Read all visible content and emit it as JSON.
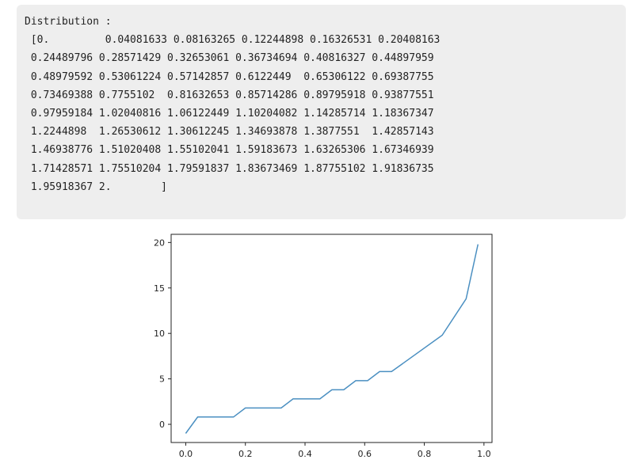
{
  "output": {
    "lines": [
      "Distribution :",
      " [0.         0.04081633 0.08163265 0.12244898 0.16326531 0.20408163",
      " 0.24489796 0.28571429 0.32653061 0.36734694 0.40816327 0.44897959",
      " 0.48979592 0.53061224 0.57142857 0.6122449  0.65306122 0.69387755",
      " 0.73469388 0.7755102  0.81632653 0.85714286 0.89795918 0.93877551",
      " 0.97959184 1.02040816 1.06122449 1.10204082 1.14285714 1.18367347",
      " 1.2244898  1.26530612 1.30612245 1.34693878 1.3877551  1.42857143",
      " 1.46938776 1.51020408 1.55102041 1.59183673 1.63265306 1.67346939",
      " 1.71428571 1.75510204 1.79591837 1.83673469 1.87755102 1.91836735",
      " 1.95918367 2.        ]"
    ]
  },
  "chart_data": {
    "type": "line",
    "title": "",
    "xlabel": "",
    "ylabel": "",
    "xlim": [
      -0.049,
      1.027
    ],
    "ylim": [
      -2.0,
      20.9
    ],
    "xticks": [
      "0.0",
      "0.2",
      "0.4",
      "0.6",
      "0.8",
      "1.0"
    ],
    "yticks": [
      "0",
      "5",
      "10",
      "15",
      "20"
    ],
    "grid": false,
    "line_color": "#4a8fc1",
    "x": [
      0.0,
      0.04,
      0.16,
      0.2,
      0.32,
      0.36,
      0.45,
      0.49,
      0.53,
      0.57,
      0.61,
      0.65,
      0.69,
      0.86,
      0.94,
      0.98
    ],
    "y": [
      -1,
      0.8,
      0.8,
      1.8,
      1.8,
      2.8,
      2.8,
      3.8,
      3.8,
      4.8,
      4.8,
      5.8,
      5.8,
      9.8,
      13.8,
      19.8
    ]
  }
}
